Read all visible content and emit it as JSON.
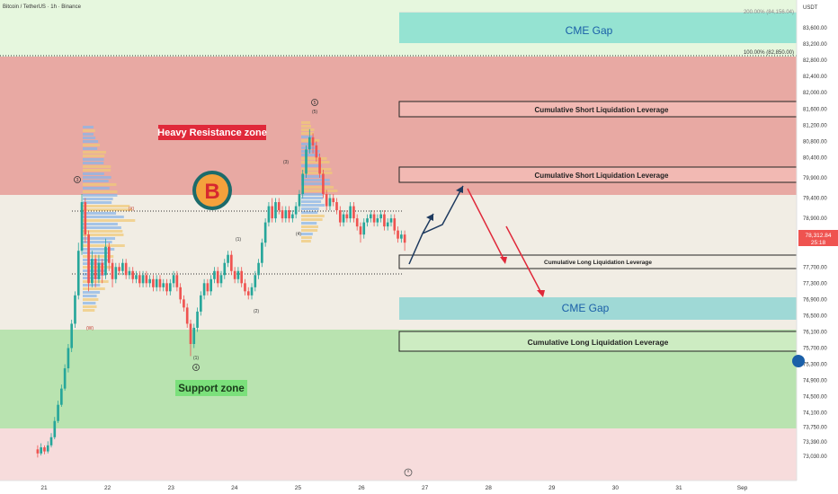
{
  "header": {
    "symbol_title": "Bitcoin / TetherUS · 1h · Binance",
    "currency": "USDT"
  },
  "price_tag": {
    "value": "78,312.84",
    "countdown": "25:18"
  },
  "colors": {
    "resistance_fill": "#e8a9a3",
    "support_fill": "#b9e3b0",
    "top_green_fill": "#e6f7de",
    "mid_band_fill": "#f1ede4",
    "bottom_pink_fill": "#f7dcdc",
    "cme_gap_fill": "#95e3d2",
    "candle_up": "#26a69a",
    "candle_down": "#ef5350",
    "projection_up": "#1e3a5f",
    "projection_down": "#e0293a",
    "resistance_label_bg": "#e0293a",
    "support_label_bg": "#7be07b",
    "price_tag_bg": "#ef5350",
    "bitcoin_logo": "#f4a13c"
  },
  "fib_levels": {
    "top": "200.00% (84,156.04)",
    "mid": "100.00% (82,850.00)"
  },
  "zones": {
    "resistance_label": "Heavy Resistance zone",
    "support_label": "Support zone"
  },
  "boxes": {
    "cme_gap_top": "CME Gap",
    "cme_gap_bottom": "CME Gap",
    "short_liq_1": "Cumulative Short Liquidation Leverage",
    "short_liq_2": "Cumulative Short Liquidation Leverage",
    "long_liq_1": "Cumulative Long Liquidation Leverage",
    "long_liq_2": "Cumulative Long Liquidation Leverage"
  },
  "wave_labels": {
    "w3_circle": "3",
    "w5_circle": "5",
    "w4_circle": "4",
    "w1": "(1)",
    "w2": "(2)",
    "w3": "(3)",
    "w4": "(4)",
    "w5": "(5)",
    "wx": "(X)",
    "ww": "(W)",
    "wy": "(Y)",
    "w1_low": "(1)"
  },
  "chart_data": {
    "type": "candlestick",
    "title": "Bitcoin / TetherUS · 1h · Binance",
    "y_axis": {
      "ticks": [
        "83,600.00",
        "83,200.00",
        "82,800.00",
        "82,400.00",
        "82,000.00",
        "81,600.00",
        "81,200.00",
        "80,800.00",
        "80,400.00",
        "79,900.00",
        "79,400.00",
        "78,900.00",
        "78,500.00",
        "77,700.00",
        "77,300.00",
        "76,900.00",
        "76,500.00",
        "76,100.00",
        "75,700.00",
        "75,300.00",
        "74,900.00",
        "74,500.00",
        "74,100.00",
        "73,750.00",
        "73,390.00",
        "73,030.00"
      ]
    },
    "x_axis": {
      "ticks": [
        "21",
        "22",
        "23",
        "24",
        "25",
        "26",
        "27",
        "28",
        "29",
        "30",
        "31",
        "Sep"
      ]
    },
    "candles": [
      [
        73200,
        73100,
        73300,
        73000
      ],
      [
        73100,
        73250,
        73350,
        73050
      ],
      [
        73250,
        73150,
        73300,
        73080
      ],
      [
        73150,
        73300,
        73400,
        73100
      ],
      [
        73300,
        73500,
        73600,
        73250
      ],
      [
        73500,
        73900,
        74000,
        73450
      ],
      [
        73900,
        74300,
        74400,
        73850
      ],
      [
        74300,
        74700,
        74800,
        74250
      ],
      [
        74700,
        75200,
        75300,
        74650
      ],
      [
        75200,
        75700,
        75800,
        75100
      ],
      [
        75700,
        76300,
        76400,
        75600
      ],
      [
        76300,
        77000,
        77100,
        76200
      ],
      [
        77000,
        78100,
        78300,
        76900
      ],
      [
        78100,
        79300,
        79500,
        78000
      ],
      [
        79300,
        78500,
        79400,
        78300
      ],
      [
        78500,
        77300,
        78600,
        77100
      ],
      [
        77300,
        77900,
        78100,
        77200
      ],
      [
        77900,
        77400,
        78000,
        77200
      ],
      [
        77400,
        77800,
        78000,
        77300
      ],
      [
        77800,
        77500,
        77900,
        77300
      ],
      [
        77500,
        78200,
        78400,
        77400
      ],
      [
        78200,
        77800,
        78300,
        77600
      ],
      [
        77800,
        77400,
        77900,
        77200
      ],
      [
        77400,
        77700,
        77800,
        77300
      ],
      [
        77700,
        77600,
        77800,
        77500
      ],
      [
        77600,
        77800,
        77900,
        77500
      ],
      [
        77800,
        77500,
        77900,
        77400
      ],
      [
        77500,
        77600,
        77700,
        77400
      ],
      [
        77600,
        77400,
        77700,
        77300
      ],
      [
        77400,
        77500,
        77600,
        77300
      ],
      [
        77500,
        77300,
        77600,
        77200
      ],
      [
        77300,
        77500,
        77600,
        77200
      ],
      [
        77500,
        77300,
        77600,
        77200
      ],
      [
        77300,
        77400,
        77500,
        77200
      ],
      [
        77400,
        77200,
        77500,
        77100
      ],
      [
        77200,
        77400,
        77500,
        77100
      ],
      [
        77400,
        77200,
        77500,
        77100
      ],
      [
        77200,
        77300,
        77400,
        77100
      ],
      [
        77300,
        77100,
        77400,
        77000
      ],
      [
        77100,
        77300,
        77400,
        77000
      ],
      [
        77300,
        77500,
        77600,
        77200
      ],
      [
        77500,
        77200,
        77600,
        77100
      ],
      [
        77200,
        76900,
        77300,
        76800
      ],
      [
        76900,
        76700,
        77000,
        76600
      ],
      [
        76700,
        76300,
        76800,
        76200
      ],
      [
        76300,
        75800,
        76400,
        75500
      ],
      [
        75800,
        76200,
        76300,
        75700
      ],
      [
        76200,
        76600,
        76700,
        76100
      ],
      [
        76600,
        77000,
        77100,
        76500
      ],
      [
        77000,
        77300,
        77400,
        76900
      ],
      [
        77300,
        77100,
        77400,
        77000
      ],
      [
        77100,
        77400,
        77500,
        77000
      ],
      [
        77400,
        77600,
        77700,
        77300
      ],
      [
        77600,
        77300,
        77700,
        77200
      ],
      [
        77300,
        77500,
        77600,
        77200
      ],
      [
        77500,
        77800,
        77900,
        77400
      ],
      [
        77800,
        78000,
        78100,
        77700
      ],
      [
        78000,
        77600,
        78100,
        77500
      ],
      [
        77600,
        77400,
        77700,
        77300
      ],
      [
        77400,
        77600,
        77700,
        77300
      ],
      [
        77600,
        77300,
        77700,
        77200
      ],
      [
        77300,
        77100,
        77400,
        77000
      ],
      [
        77100,
        77000,
        77200,
        76900
      ],
      [
        77000,
        77200,
        77300,
        76900
      ],
      [
        77200,
        77500,
        77600,
        77100
      ],
      [
        77500,
        77800,
        77900,
        77400
      ],
      [
        77800,
        78300,
        78400,
        77700
      ],
      [
        78300,
        78800,
        78900,
        78200
      ],
      [
        78800,
        79200,
        79300,
        78700
      ],
      [
        79200,
        78900,
        79400,
        78800
      ],
      [
        78900,
        79300,
        79400,
        78800
      ],
      [
        79300,
        79100,
        79400,
        79000
      ],
      [
        79100,
        78900,
        79200,
        78800
      ],
      [
        78900,
        79100,
        79200,
        78800
      ],
      [
        79100,
        78900,
        79200,
        78800
      ],
      [
        78900,
        79000,
        79100,
        78800
      ],
      [
        79000,
        79200,
        79300,
        78900
      ],
      [
        79200,
        79500,
        79600,
        79100
      ],
      [
        79500,
        80000,
        80100,
        79400
      ],
      [
        80000,
        80600,
        80700,
        79900
      ],
      [
        80600,
        80900,
        81100,
        80500
      ],
      [
        80900,
        80700,
        81000,
        80500
      ],
      [
        80700,
        80400,
        80800,
        80300
      ],
      [
        80400,
        80000,
        80500,
        79900
      ],
      [
        80000,
        79500,
        80100,
        79400
      ],
      [
        79500,
        79200,
        79600,
        79100
      ],
      [
        79200,
        79400,
        79500,
        79100
      ],
      [
        79400,
        79300,
        79500,
        79200
      ],
      [
        79300,
        79100,
        79400,
        79000
      ],
      [
        79100,
        78800,
        79200,
        78700
      ],
      [
        78800,
        79000,
        79100,
        78700
      ],
      [
        79000,
        78900,
        79100,
        78800
      ],
      [
        78900,
        79200,
        79300,
        78800
      ],
      [
        79200,
        78900,
        79300,
        78800
      ],
      [
        78900,
        78700,
        79000,
        78600
      ],
      [
        78700,
        78500,
        78800,
        78300
      ],
      [
        78500,
        78800,
        78900,
        78400
      ],
      [
        78800,
        78900,
        79000,
        78700
      ],
      [
        78900,
        79000,
        79100,
        78800
      ],
      [
        79000,
        78800,
        79100,
        78700
      ],
      [
        78800,
        78900,
        79000,
        78700
      ],
      [
        78900,
        79000,
        79100,
        78800
      ],
      [
        79000,
        78700,
        79100,
        78600
      ],
      [
        78700,
        78800,
        78900,
        78600
      ],
      [
        78800,
        78900,
        79000,
        78700
      ],
      [
        78900,
        78600,
        79000,
        78500
      ],
      [
        78600,
        78400,
        78700,
        78300
      ],
      [
        78400,
        78500,
        78600,
        78300
      ],
      [
        78500,
        78300,
        78600,
        78100
      ]
    ],
    "horizontal_lines": {
      "upper_dotted_level": 78900,
      "lower_dotted_level": 77300
    },
    "projection_path_up": [
      [
        77700,
        0
      ],
      [
        78800,
        1
      ],
      [
        78600,
        2
      ],
      [
        79450,
        3
      ]
    ],
    "projection_path_down": [
      [
        79450,
        0
      ],
      [
        77700,
        1
      ]
    ],
    "projection_path_down_2": [
      [
        78200,
        0
      ],
      [
        76700,
        1
      ]
    ]
  },
  "footer_icon": "clock-icon"
}
